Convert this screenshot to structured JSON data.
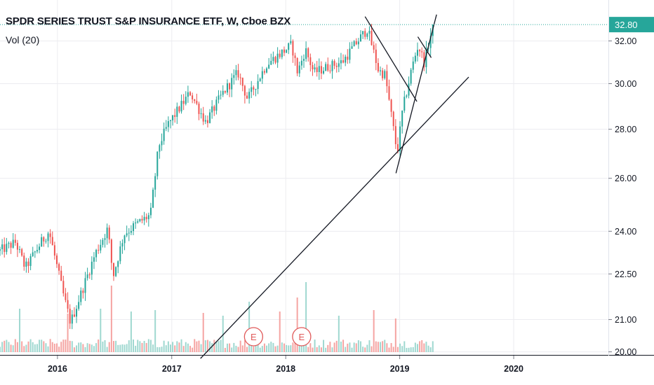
{
  "header": {
    "title": "SPDR SERIES TRUST S&P INSURANCE ETF, W, Cboe BZX",
    "volume_indicator": "Vol (20)"
  },
  "colors": {
    "up": "#26a69a",
    "down": "#ef5350",
    "vol_up": "#9fd8d0",
    "vol_down": "#f5a4a2",
    "last_price_badge": "#26a69a",
    "earnings_marker": "#e05a5a",
    "trendline": "#131722",
    "gridline": "#ececf0"
  },
  "chart_data": {
    "type": "candlestick",
    "title": "SPDR SERIES TRUST S&P INSURANCE ETF, W, Cboe BZX",
    "interval": "W",
    "exchange": "Cboe BZX",
    "x_tick_labels": [
      "2016",
      "2017",
      "2018",
      "2019",
      "2020"
    ],
    "y_tick_labels": [
      "32.00",
      "30.00",
      "28.00",
      "26.00",
      "24.00",
      "22.50",
      "21.00",
      "20.00"
    ],
    "y_scale": "log",
    "ylim": [
      19.95,
      33.4
    ],
    "xlim": [
      "2015-07-01",
      "2020-10-28"
    ],
    "last_price": "32.80",
    "last_price_value": 32.8,
    "grid": true,
    "volume_pane": "Vol (20)",
    "earnings_markers": [
      {
        "date": "2017-09-20",
        "label": "E"
      },
      {
        "date": "2018-02-21",
        "label": "E"
      }
    ],
    "price_anchors": [
      {
        "date": "2015-07-01",
        "price": 23.3
      },
      {
        "date": "2015-08-20",
        "price": 23.6
      },
      {
        "date": "2015-09-20",
        "price": 22.7
      },
      {
        "date": "2015-11-10",
        "price": 23.6
      },
      {
        "date": "2015-12-05",
        "price": 24.0
      },
      {
        "date": "2016-01-20",
        "price": 21.8
      },
      {
        "date": "2016-02-12",
        "price": 20.9
      },
      {
        "date": "2016-04-01",
        "price": 22.3
      },
      {
        "date": "2016-05-01",
        "price": 23.2
      },
      {
        "date": "2016-06-10",
        "price": 24.1
      },
      {
        "date": "2016-06-27",
        "price": 22.4
      },
      {
        "date": "2016-08-01",
        "price": 23.9
      },
      {
        "date": "2016-09-15",
        "price": 24.3
      },
      {
        "date": "2016-10-25",
        "price": 24.6
      },
      {
        "date": "2016-11-20",
        "price": 27.3
      },
      {
        "date": "2016-12-20",
        "price": 28.2
      },
      {
        "date": "2017-03-01",
        "price": 29.6
      },
      {
        "date": "2017-04-20",
        "price": 28.3
      },
      {
        "date": "2017-06-15",
        "price": 29.6
      },
      {
        "date": "2017-08-01",
        "price": 30.5
      },
      {
        "date": "2017-09-01",
        "price": 29.3
      },
      {
        "date": "2017-11-01",
        "price": 30.9
      },
      {
        "date": "2018-01-20",
        "price": 31.8
      },
      {
        "date": "2018-02-08",
        "price": 30.5
      },
      {
        "date": "2018-03-05",
        "price": 31.6
      },
      {
        "date": "2018-04-01",
        "price": 30.5
      },
      {
        "date": "2018-05-20",
        "price": 30.8
      },
      {
        "date": "2018-07-01",
        "price": 31.0
      },
      {
        "date": "2018-08-15",
        "price": 31.9
      },
      {
        "date": "2018-09-20",
        "price": 32.6
      },
      {
        "date": "2018-10-25",
        "price": 30.6
      },
      {
        "date": "2018-11-15",
        "price": 30.4
      },
      {
        "date": "2018-12-24",
        "price": 27.0
      },
      {
        "date": "2019-01-10",
        "price": 28.8
      },
      {
        "date": "2019-02-10",
        "price": 30.8
      },
      {
        "date": "2019-03-01",
        "price": 31.8
      },
      {
        "date": "2019-03-20",
        "price": 31.0
      },
      {
        "date": "2019-04-19",
        "price": 32.8
      }
    ],
    "volume_spikes": [
      {
        "date": "2015-09-01",
        "value": 0.62
      },
      {
        "date": "2016-02-05",
        "value": 0.55
      },
      {
        "date": "2016-05-20",
        "value": 0.62
      },
      {
        "date": "2016-06-24",
        "value": 0.95
      },
      {
        "date": "2016-08-25",
        "value": 0.58
      },
      {
        "date": "2016-11-11",
        "value": 0.6
      },
      {
        "date": "2017-04-14",
        "value": 0.56
      },
      {
        "date": "2017-06-16",
        "value": 0.52
      },
      {
        "date": "2017-09-08",
        "value": 0.72
      },
      {
        "date": "2017-12-15",
        "value": 0.58
      },
      {
        "date": "2018-02-09",
        "value": 0.78
      },
      {
        "date": "2018-03-09",
        "value": 1.0
      },
      {
        "date": "2018-06-22",
        "value": 0.52
      },
      {
        "date": "2018-10-12",
        "value": 0.6
      },
      {
        "date": "2018-12-21",
        "value": 0.48
      }
    ],
    "trendlines": [
      {
        "from": {
          "date": "2017-04-03",
          "price": 19.8
        },
        "to": {
          "date": "2019-08-10",
          "price": 30.3
        }
      },
      {
        "from": {
          "date": "2018-09-12",
          "price": 33.2
        },
        "to": {
          "date": "2019-02-25",
          "price": 29.2
        }
      },
      {
        "from": {
          "date": "2018-12-20",
          "price": 26.2
        },
        "to": {
          "date": "2019-04-29",
          "price": 33.3
        }
      },
      {
        "from": {
          "date": "2019-02-28",
          "price": 32.2
        },
        "to": {
          "date": "2019-04-12",
          "price": 31.2
        }
      }
    ]
  }
}
